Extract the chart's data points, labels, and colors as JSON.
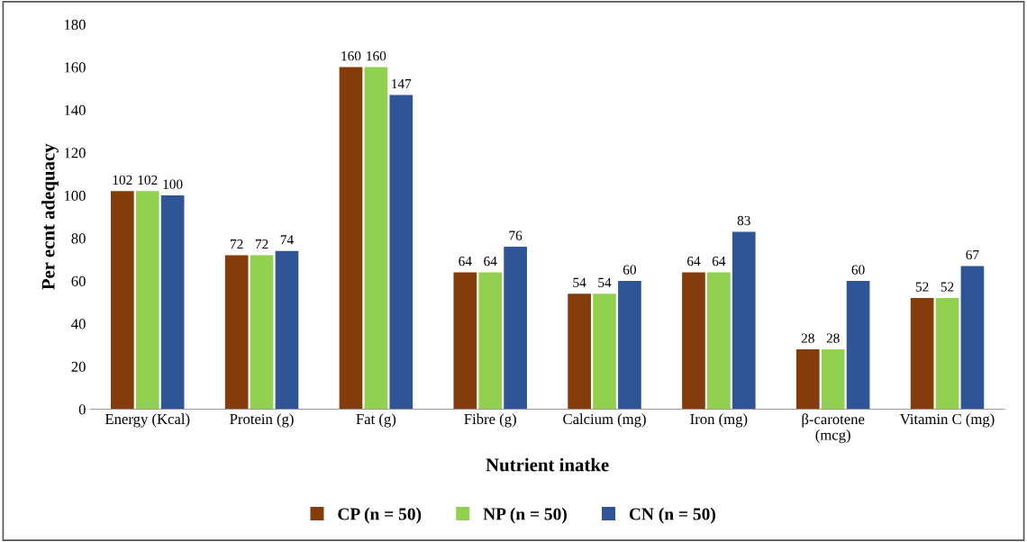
{
  "chart_data": {
    "type": "bar",
    "xlabel": "Nutrient inatke",
    "ylabel": "Per ecnt adequacy",
    "categories": [
      "Energy (Kcal)",
      "Protein (g)",
      "Fat (g)",
      "Fibre (g)",
      "Calcium (mg)",
      "Iron (mg)",
      "β-carotene\n(mcg)",
      "Vitamin C (mg)"
    ],
    "series": [
      {
        "name": "CP (n = 50)",
        "color": "#843c0c",
        "values": [
          102,
          72,
          160,
          64,
          54,
          64,
          28,
          52
        ]
      },
      {
        "name": "NP (n = 50)",
        "color": "#92d050",
        "values": [
          102,
          72,
          160,
          64,
          54,
          64,
          28,
          52
        ]
      },
      {
        "name": "CN (n = 50)",
        "color": "#2f5597",
        "values": [
          100,
          74,
          147,
          76,
          60,
          83,
          60,
          67
        ]
      }
    ],
    "ylim": [
      0,
      180
    ],
    "yticks": [
      0,
      20,
      40,
      60,
      80,
      100,
      120,
      140,
      160,
      180
    ],
    "data_labels": true,
    "grid": false,
    "legend": "bottom"
  }
}
